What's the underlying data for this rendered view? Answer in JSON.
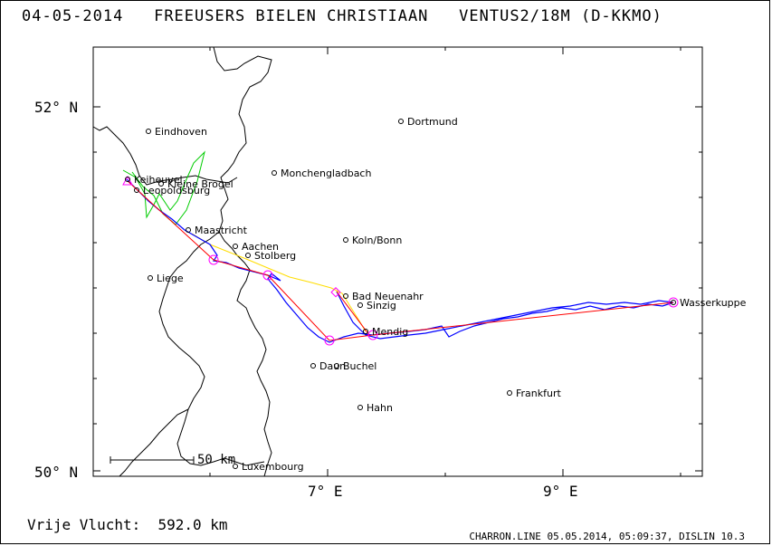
{
  "header": {
    "date": "04-05-2014",
    "pilot": "FREEUSERS BIELEN CHRISTIAAN",
    "glider": "VENTUS2/18M (D-KKMO)"
  },
  "axes": {
    "lat_labels": [
      "52° N",
      "50° N"
    ],
    "lon_labels": [
      "7° E",
      "9° E"
    ]
  },
  "scale": {
    "label": "50 km"
  },
  "distance": {
    "label": "Vrije Vlucht:",
    "value": "592.0 km"
  },
  "footer": "CHARRON.LINE 05.05.2014, 05:09:37, DISLIN 10.3",
  "colors": {
    "track": "#0000ff",
    "task": "#ff0000",
    "start": "#00cc00",
    "final": "#ffff00",
    "turnpoint": "#ff00ff",
    "border": "#000000"
  },
  "cities": [
    {
      "name": "Eindhoven"
    },
    {
      "name": "Dortmund"
    },
    {
      "name": "Monchengladbach"
    },
    {
      "name": "Keiheuvel"
    },
    {
      "name": "Kleine Brogel"
    },
    {
      "name": "Leopoldsburg"
    },
    {
      "name": "Maastricht"
    },
    {
      "name": "Aachen"
    },
    {
      "name": "Stolberg"
    },
    {
      "name": "Koln/Bonn"
    },
    {
      "name": "Liege"
    },
    {
      "name": "Bad Neuenahr"
    },
    {
      "name": "Sinzig"
    },
    {
      "name": "Mendig"
    },
    {
      "name": "Wasserkuppe"
    },
    {
      "name": "Daun"
    },
    {
      "name": "Buchel"
    },
    {
      "name": "Frankfurt"
    },
    {
      "name": "Hahn"
    },
    {
      "name": "Luxembourg"
    }
  ]
}
